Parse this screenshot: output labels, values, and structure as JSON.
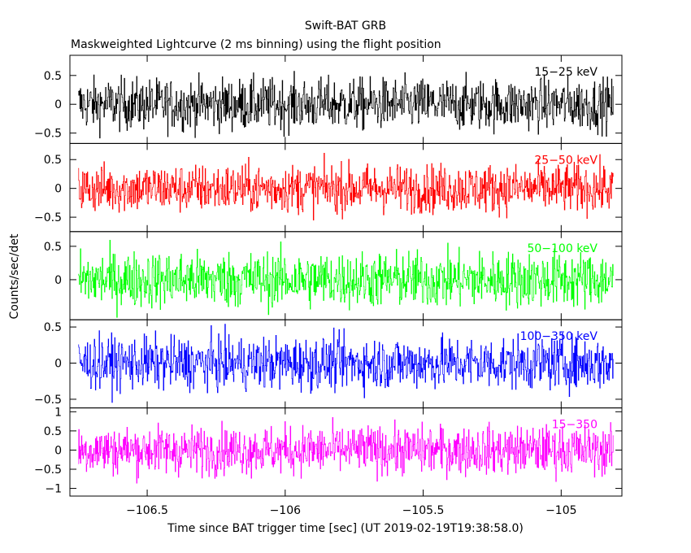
{
  "chart_data": {
    "type": "line",
    "title": "Swift-BAT GRB",
    "subtitle": "Maskweighted Lightcurve (2 ms binning) using the flight position",
    "xlabel": "Time since BAT trigger time [sec] (UT 2019-02-19T19:38:58.0)",
    "ylabel": "Counts/sec/det",
    "xlim": [
      -106.78,
      -104.78
    ],
    "data_xrange": [
      -106.75,
      -104.81
    ],
    "xticks": [
      {
        "value": -106.5,
        "label": "−106.5"
      },
      {
        "value": -106,
        "label": "−106"
      },
      {
        "value": -105.5,
        "label": "−105.5"
      },
      {
        "value": -105,
        "label": "−105"
      }
    ],
    "panels": [
      {
        "band": "15−25 keV",
        "color": "#000000",
        "ylim": [
          -0.68,
          0.85
        ],
        "amplitude": 0.32,
        "yticks": [
          {
            "value": 0.5,
            "label": "0.5"
          },
          {
            "value": 0,
            "label": "0"
          },
          {
            "value": -0.5,
            "label": "−0.5"
          }
        ]
      },
      {
        "band": "25−50 keV",
        "color": "#ff0000",
        "ylim": [
          -0.75,
          0.78
        ],
        "amplitude": 0.3,
        "yticks": [
          {
            "value": 0.5,
            "label": "0.5"
          },
          {
            "value": 0,
            "label": "0"
          },
          {
            "value": -0.5,
            "label": "−0.5"
          }
        ]
      },
      {
        "band": "50−100 keV",
        "color": "#00ff00",
        "ylim": [
          -0.6,
          0.72
        ],
        "amplitude": 0.3,
        "yticks": [
          {
            "value": 0.5,
            "label": "0.5"
          },
          {
            "value": 0,
            "label": "0"
          }
        ]
      },
      {
        "band": "100−350 keV",
        "color": "#0000ff",
        "ylim": [
          -0.62,
          0.6
        ],
        "amplitude": 0.26,
        "yticks": [
          {
            "value": 0.5,
            "label": "0.5"
          },
          {
            "value": 0,
            "label": "0"
          },
          {
            "value": -0.5,
            "label": "−0.5"
          }
        ]
      },
      {
        "band": "15−350",
        "color": "#ff00ff",
        "ylim": [
          -1.2,
          1.1
        ],
        "amplitude": 0.45,
        "yticks": [
          {
            "value": 1,
            "label": "1"
          },
          {
            "value": 0.5,
            "label": "0.5"
          },
          {
            "value": 0,
            "label": "0"
          },
          {
            "value": -0.5,
            "label": "−0.5"
          },
          {
            "value": -1,
            "label": "−1"
          }
        ]
      }
    ]
  }
}
